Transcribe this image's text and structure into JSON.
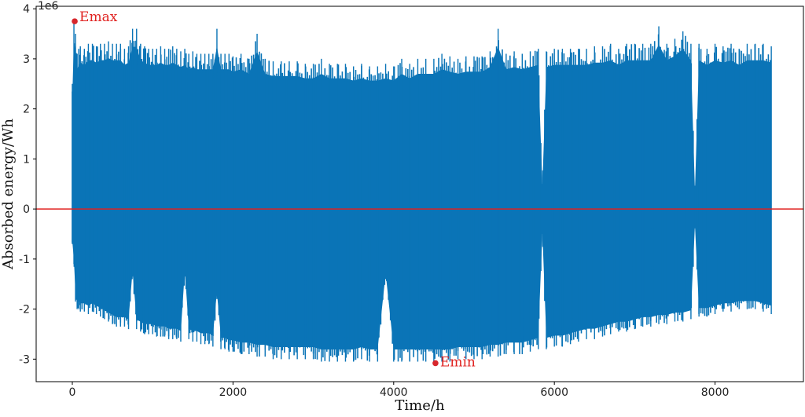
{
  "colors": {
    "series": "#0a74b7",
    "zero_line": "#e0211f",
    "annotation": "#e0211f",
    "marker": "#d7262c"
  },
  "chart_data": {
    "type": "line",
    "title": "",
    "xlabel": "Time/h",
    "ylabel": "Absorbed energy/Wh",
    "y_scale_label": "1e6",
    "xlim": [
      -450,
      9100
    ],
    "ylim": [
      -3.45,
      4.05
    ],
    "x_ticks": [
      0,
      2000,
      4000,
      6000,
      8000
    ],
    "y_ticks": [
      -3,
      -2,
      -1,
      0,
      1,
      2,
      3,
      4
    ],
    "grid": false,
    "legend": "none",
    "series": [
      {
        "x": [
          0,
          20,
          40,
          60,
          80,
          100,
          150,
          200,
          250,
          300,
          350,
          400,
          450,
          500,
          550,
          600,
          650,
          700,
          750,
          800,
          850,
          900,
          950,
          1000,
          1050,
          1100,
          1150,
          1200,
          1250,
          1300,
          1350,
          1400,
          1450,
          1500,
          1550,
          1600,
          1650,
          1700,
          1750,
          1800,
          1850,
          1900,
          1950,
          2000,
          2100,
          2200,
          2300,
          2400,
          2500,
          2600,
          2700,
          2800,
          2900,
          3000,
          3100,
          3200,
          3300,
          3400,
          3500,
          3600,
          3700,
          3800,
          3900,
          4000,
          4100,
          4200,
          4300,
          4400,
          4500,
          4600,
          4700,
          4800,
          4900,
          5000,
          5100,
          5200,
          5300,
          5400,
          5500,
          5600,
          5700,
          5800,
          5850,
          5900,
          6000,
          6100,
          6200,
          6300,
          6400,
          6500,
          6600,
          6700,
          6800,
          6900,
          7000,
          7100,
          7200,
          7300,
          7400,
          7500,
          7600,
          7700,
          7750,
          7800,
          7900,
          8000,
          8100,
          8200,
          8300,
          8400,
          8500,
          8600,
          8700
        ],
        "upper": [
          2.5,
          3.75,
          3.5,
          3.1,
          3.2,
          3.25,
          3.2,
          3.3,
          3.3,
          3.25,
          3.3,
          3.3,
          3.35,
          3.3,
          3.3,
          3.3,
          3.2,
          3.25,
          3.6,
          3.6,
          3.3,
          3.25,
          3.2,
          3.2,
          3.2,
          3.25,
          3.2,
          3.2,
          3.25,
          3.2,
          3.15,
          3.2,
          3.1,
          3.15,
          3.1,
          3.1,
          3.1,
          3.1,
          3.1,
          3.6,
          3.1,
          3.1,
          3.1,
          3.05,
          3.1,
          3.0,
          3.5,
          3.0,
          2.95,
          2.95,
          2.95,
          2.95,
          2.9,
          2.9,
          3.0,
          2.9,
          2.9,
          2.9,
          2.85,
          2.9,
          2.85,
          2.85,
          2.9,
          2.85,
          3.0,
          2.9,
          3.0,
          3.0,
          3.0,
          3.1,
          3.05,
          3.0,
          3.05,
          3.05,
          3.05,
          3.15,
          3.6,
          3.1,
          3.15,
          3.1,
          3.15,
          3.2,
          0.5,
          3.15,
          3.2,
          3.2,
          3.2,
          3.2,
          3.2,
          3.25,
          3.25,
          3.3,
          3.2,
          3.3,
          3.3,
          3.3,
          3.3,
          3.65,
          3.3,
          3.4,
          3.55,
          3.3,
          0.4,
          3.3,
          3.2,
          3.3,
          3.25,
          3.3,
          3.2,
          3.3,
          3.3,
          3.3,
          3.25
        ],
        "lower": [
          -0.7,
          -1.1,
          -1.85,
          -2.0,
          -2.0,
          -2.05,
          -2.05,
          -2.1,
          -2.05,
          -2.1,
          -2.15,
          -2.2,
          -2.25,
          -2.3,
          -2.35,
          -2.35,
          -2.35,
          -2.4,
          -1.35,
          -2.4,
          -2.45,
          -2.5,
          -2.5,
          -2.5,
          -2.55,
          -2.55,
          -2.55,
          -2.6,
          -2.6,
          -2.6,
          -2.65,
          -1.35,
          -2.6,
          -2.65,
          -2.65,
          -2.7,
          -2.7,
          -2.7,
          -2.75,
          -1.8,
          -2.8,
          -2.8,
          -2.85,
          -2.85,
          -2.9,
          -2.9,
          -2.95,
          -2.95,
          -3.0,
          -3.0,
          -3.0,
          -3.0,
          -3.0,
          -3.0,
          -3.05,
          -3.05,
          -3.05,
          -3.05,
          -3.05,
          -3.0,
          -3.05,
          -3.05,
          -1.4,
          -3.05,
          -3.05,
          -3.05,
          -3.05,
          -3.05,
          -3.05,
          -3.05,
          -3.05,
          -3.0,
          -3.0,
          -3.0,
          -3.0,
          -2.95,
          -2.95,
          -2.9,
          -2.9,
          -2.9,
          -2.85,
          -2.8,
          -0.5,
          -2.8,
          -2.75,
          -2.75,
          -2.7,
          -2.65,
          -2.6,
          -2.6,
          -2.55,
          -2.5,
          -2.45,
          -2.45,
          -2.4,
          -2.35,
          -2.35,
          -2.3,
          -2.3,
          -2.25,
          -2.25,
          -2.2,
          -0.35,
          -2.15,
          -2.15,
          -2.1,
          -2.05,
          -2.05,
          -2.0,
          -2.0,
          -2.0,
          -2.05,
          -2.1
        ]
      },
      {
        "name": "",
        "x": [
          -450,
          9100
        ],
        "values": [
          0,
          0
        ]
      }
    ],
    "annotations": [
      {
        "text": "Emax",
        "x": 30,
        "y": 3.75
      },
      {
        "text": "Emin",
        "x": 4520,
        "y": -3.08
      }
    ]
  }
}
